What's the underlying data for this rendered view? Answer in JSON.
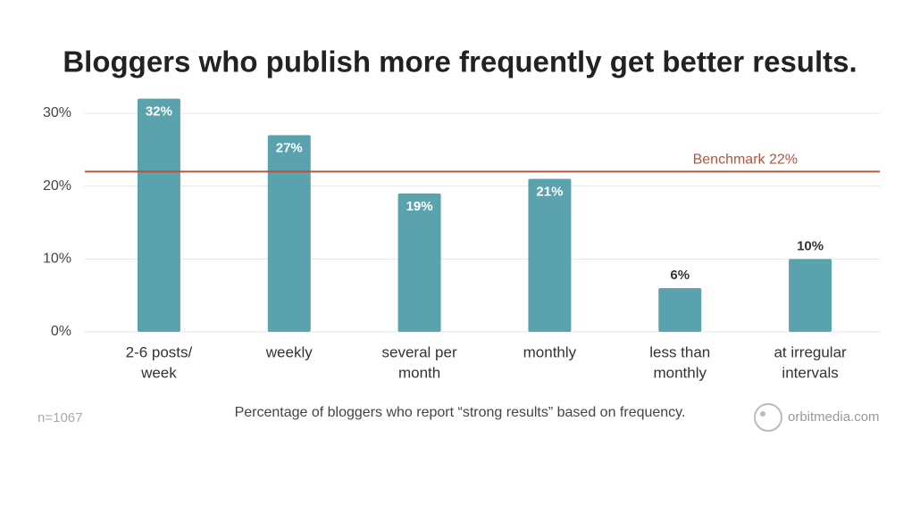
{
  "chart_data": {
    "type": "bar",
    "title": "Bloggers who publish more frequently get better results.",
    "categories": [
      [
        "2-6 posts/",
        "week"
      ],
      [
        "weekly"
      ],
      [
        "several per",
        "month"
      ],
      [
        "monthly"
      ],
      [
        "less than",
        "monthly"
      ],
      [
        "at irregular",
        "intervals"
      ]
    ],
    "values": [
      32,
      27,
      19,
      21,
      6,
      10
    ],
    "value_labels": [
      "32%",
      "27%",
      "19%",
      "21%",
      "6%",
      "10%"
    ],
    "color": "#5aa3ae",
    "ylim": [
      0,
      30
    ],
    "yticks": [
      {
        "value": 0,
        "label": "0%"
      },
      {
        "value": 10,
        "label": "10%"
      },
      {
        "value": 20,
        "label": "20%"
      },
      {
        "value": 30,
        "label": "30%"
      }
    ],
    "grid": true,
    "benchmark": {
      "value": 22,
      "label": "Benchmark 22%",
      "color": "#b5533c"
    },
    "caption": "Percentage of bloggers who report “strong results” based on frequency.",
    "sample_note": "n=1067",
    "source": "orbitmedia.com"
  }
}
